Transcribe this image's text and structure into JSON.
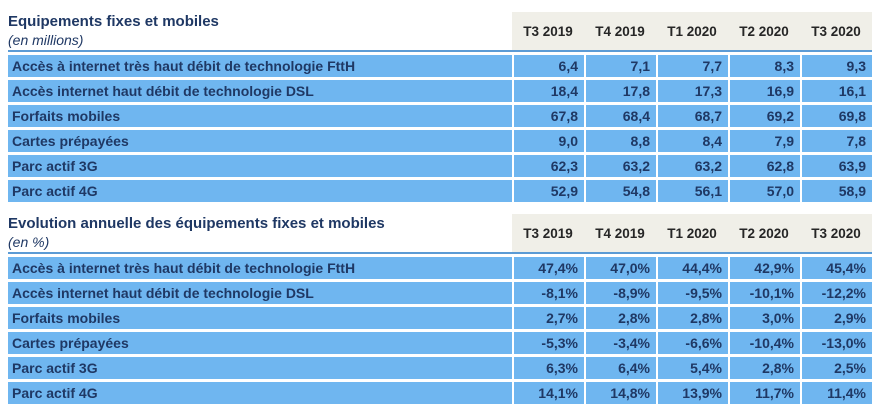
{
  "colors": {
    "row_background": "#6FB6F0",
    "value_text": "#1F3864",
    "divider_line": "#5B9BD5",
    "header_band_background": "#F0EFE8",
    "header_text": "#262626"
  },
  "columns": [
    "T3 2019",
    "T4 2019",
    "T1 2020",
    "T2 2020",
    "T3 2020"
  ],
  "tables": [
    {
      "title": "Equipements fixes et mobiles",
      "subtitle": "(en millions)",
      "rows": [
        {
          "label": "Accès à internet très haut débit de technologie FttH",
          "values": [
            "6,4",
            "7,1",
            "7,7",
            "8,3",
            "9,3"
          ]
        },
        {
          "label": "Accès internet haut débit de technologie DSL",
          "values": [
            "18,4",
            "17,8",
            "17,3",
            "16,9",
            "16,1"
          ]
        },
        {
          "label": "Forfaits mobiles",
          "values": [
            "67,8",
            "68,4",
            "68,7",
            "69,2",
            "69,8"
          ]
        },
        {
          "label": "Cartes prépayées",
          "values": [
            "9,0",
            "8,8",
            "8,4",
            "7,9",
            "7,8"
          ]
        },
        {
          "label": "Parc actif 3G",
          "values": [
            "62,3",
            "63,2",
            "63,2",
            "62,8",
            "63,9"
          ]
        },
        {
          "label": "Parc actif 4G",
          "values": [
            "52,9",
            "54,8",
            "56,1",
            "57,0",
            "58,9"
          ]
        }
      ]
    },
    {
      "title": "Evolution annuelle des équipements fixes et mobiles",
      "subtitle": "(en %)",
      "rows": [
        {
          "label": "Accès à internet très haut débit de technologie FttH",
          "values": [
            "47,4%",
            "47,0%",
            "44,4%",
            "42,9%",
            "45,4%"
          ]
        },
        {
          "label": "Accès internet haut débit de technologie DSL",
          "values": [
            "-8,1%",
            "-8,9%",
            "-9,5%",
            "-10,1%",
            "-12,2%"
          ]
        },
        {
          "label": "Forfaits mobiles",
          "values": [
            "2,7%",
            "2,8%",
            "2,8%",
            "3,0%",
            "2,9%"
          ]
        },
        {
          "label": "Cartes prépayées",
          "values": [
            "-5,3%",
            "-3,4%",
            "-6,6%",
            "-10,4%",
            "-13,0%"
          ]
        },
        {
          "label": "Parc actif 3G",
          "values": [
            "6,3%",
            "6,4%",
            "5,4%",
            "2,8%",
            "2,5%"
          ]
        },
        {
          "label": "Parc actif 4G",
          "values": [
            "14,1%",
            "14,8%",
            "13,9%",
            "11,7%",
            "11,4%"
          ]
        }
      ]
    }
  ]
}
